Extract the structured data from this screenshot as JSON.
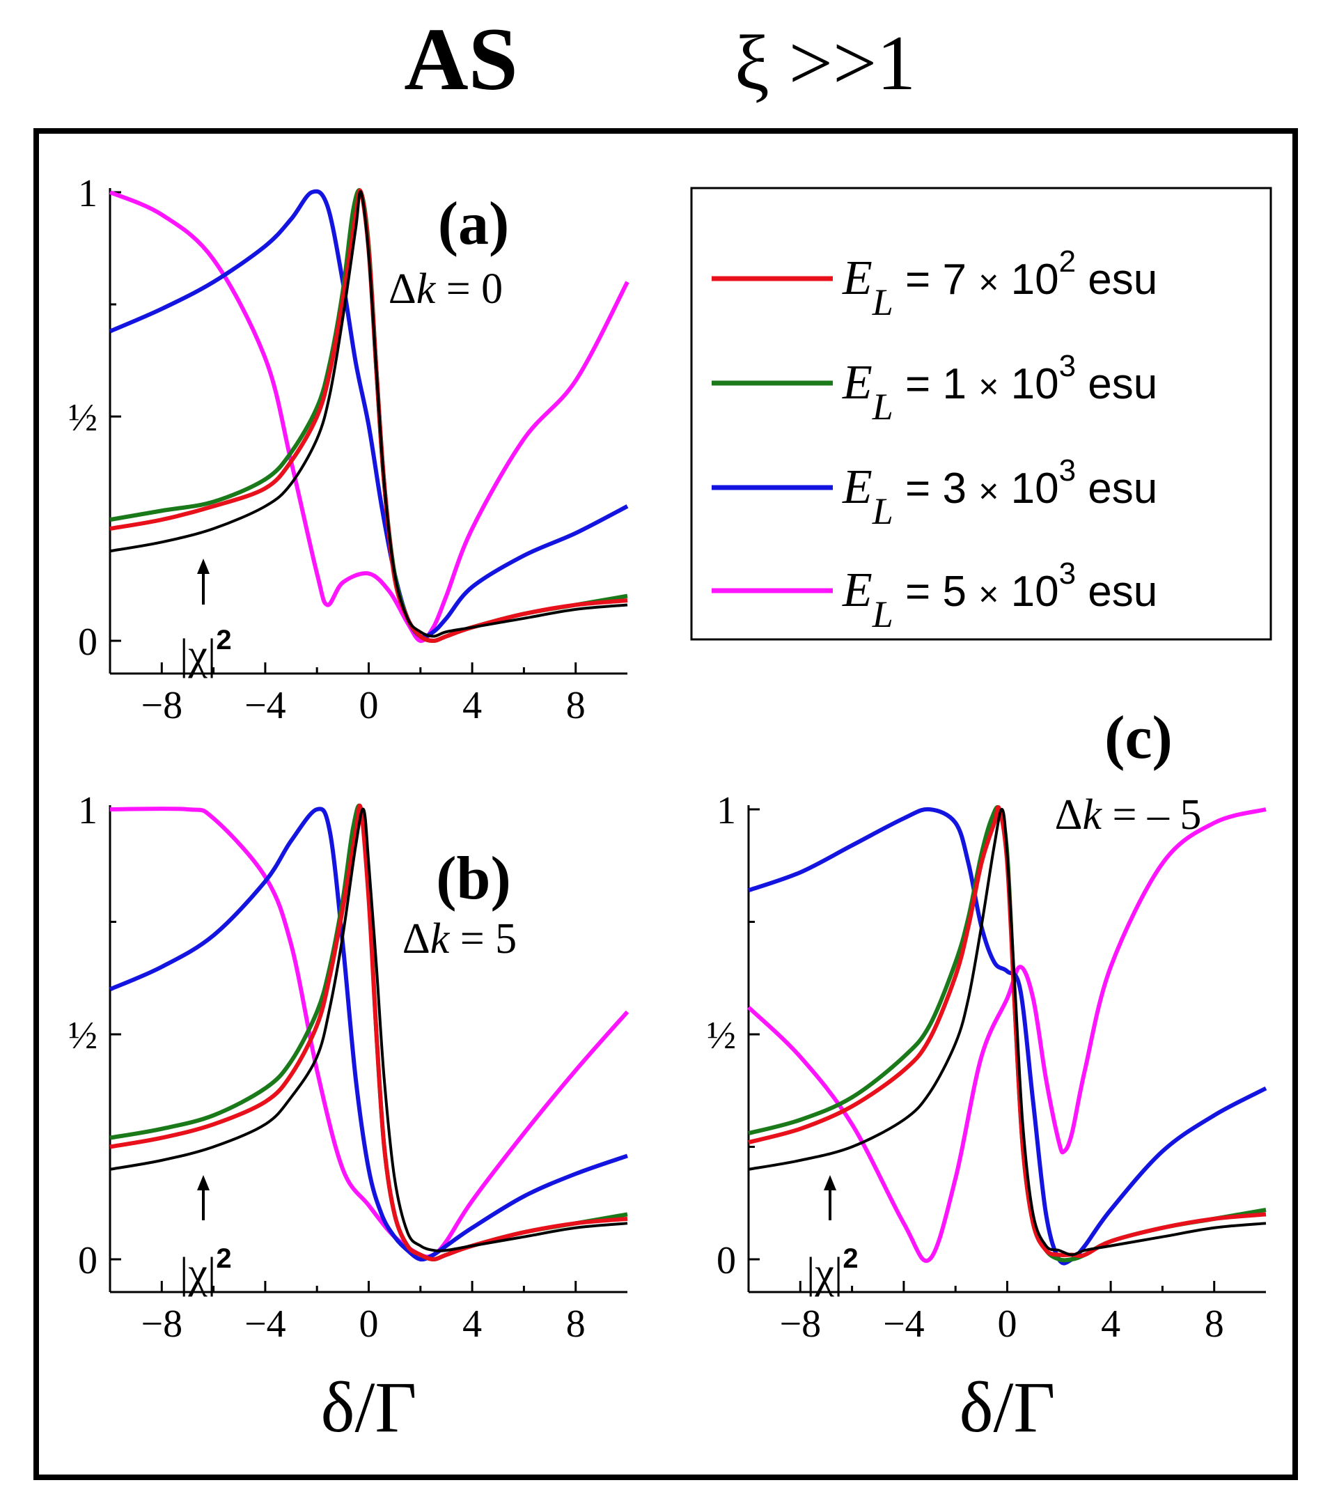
{
  "header": {
    "left": "AS",
    "right": "ξ >>1"
  },
  "legend": {
    "entries": [
      {
        "sym": "E",
        "sub": "L",
        "eq": " = 7 ",
        "times": "×",
        "base": " 10",
        "exp": "2",
        "unit": " esu",
        "color": "#e8101a"
      },
      {
        "sym": "E",
        "sub": "L",
        "eq": " = 1 ",
        "times": "×",
        "base": " 10",
        "exp": "3",
        "unit": " esu",
        "color": "#1a7a1a"
      },
      {
        "sym": "E",
        "sub": "L",
        "eq": " = 3 ",
        "times": "×",
        "base": " 10",
        "exp": "3",
        "unit": " esu",
        "color": "#1414e0"
      },
      {
        "sym": "E",
        "sub": "L",
        "eq": " = 5 ",
        "times": "×",
        "base": " 10",
        "exp": "3",
        "unit": " esu",
        "color": "#ff14ff"
      }
    ]
  },
  "chi_label": {
    "text": "|χ|",
    "exp": "2"
  },
  "chart_data": [
    {
      "type": "line",
      "panel_label": "(a)",
      "annotation": {
        "delta": "Δ",
        "k": "k",
        "rest": " = 0"
      },
      "xlim": [
        -10,
        10
      ],
      "ylim": [
        0,
        1
      ],
      "xticks": [
        -8,
        -4,
        0,
        4,
        8
      ],
      "xtick_labels": [
        "−8",
        "−4",
        "0",
        "4",
        "8"
      ],
      "yticks": [
        0,
        0.5,
        1
      ],
      "ytick_labels": [
        "0",
        "½",
        "1"
      ],
      "xlabel": "",
      "series": [
        {
          "color": "#ff14ff",
          "x": [
            -10,
            -8,
            -6,
            -4,
            -3,
            -2,
            -1.6,
            -1,
            0,
            0.8,
            1.5,
            2,
            2.5,
            3,
            4,
            6,
            8,
            10
          ],
          "y": [
            1.0,
            0.95,
            0.85,
            0.63,
            0.4,
            0.15,
            0.08,
            0.13,
            0.15,
            0.11,
            0.04,
            0.0,
            0.03,
            0.1,
            0.25,
            0.45,
            0.58,
            0.8
          ]
        },
        {
          "color": "#1414e0",
          "x": [
            -10,
            -8,
            -6,
            -4,
            -3,
            -2.2,
            -1.6,
            -1,
            -0.5,
            0,
            0.5,
            1,
            1.5,
            2,
            2.5,
            3,
            4,
            6,
            8,
            10
          ],
          "y": [
            0.69,
            0.74,
            0.8,
            0.88,
            0.94,
            1.0,
            0.97,
            0.8,
            0.62,
            0.48,
            0.3,
            0.15,
            0.05,
            0.01,
            0.02,
            0.05,
            0.12,
            0.19,
            0.24,
            0.3
          ]
        },
        {
          "color": "#1a7a1a",
          "x": [
            -10,
            -8,
            -6,
            -4,
            -3,
            -2,
            -1.5,
            -1,
            -0.6,
            -0.3,
            0,
            0.3,
            0.6,
            1,
            1.5,
            2,
            2.5,
            3,
            4,
            6,
            8,
            10
          ],
          "y": [
            0.27,
            0.29,
            0.31,
            0.36,
            0.42,
            0.52,
            0.62,
            0.78,
            0.96,
            1.0,
            0.88,
            0.6,
            0.35,
            0.15,
            0.05,
            0.01,
            0.0,
            0.01,
            0.03,
            0.06,
            0.08,
            0.1
          ]
        },
        {
          "color": "#e8101a",
          "x": [
            -10,
            -8,
            -6,
            -4,
            -3,
            -2,
            -1.5,
            -1,
            -0.5,
            -0.3,
            0,
            0.3,
            0.6,
            1,
            1.5,
            2,
            2.5,
            3,
            4,
            6,
            8,
            10
          ],
          "y": [
            0.25,
            0.27,
            0.3,
            0.34,
            0.4,
            0.5,
            0.6,
            0.76,
            0.95,
            1.0,
            0.87,
            0.6,
            0.35,
            0.14,
            0.05,
            0.01,
            0.0,
            0.01,
            0.03,
            0.06,
            0.08,
            0.09
          ]
        },
        {
          "color": "#000000",
          "x": [
            -10,
            -8,
            -6,
            -4,
            -3,
            -2,
            -1.5,
            -1,
            -0.5,
            -0.3,
            0,
            0.3,
            0.6,
            1,
            1.5,
            2,
            2.5,
            3,
            4,
            6,
            8,
            10
          ],
          "y": [
            0.2,
            0.22,
            0.25,
            0.3,
            0.35,
            0.45,
            0.55,
            0.72,
            0.92,
            1.0,
            0.86,
            0.6,
            0.35,
            0.15,
            0.05,
            0.02,
            0.01,
            0.02,
            0.03,
            0.05,
            0.07,
            0.08
          ]
        }
      ]
    },
    {
      "type": "line",
      "panel_label": "(b)",
      "annotation": {
        "delta": "Δ",
        "k": "k",
        "rest": " = 5"
      },
      "xlim": [
        -10,
        10
      ],
      "ylim": [
        0,
        1
      ],
      "xticks": [
        -8,
        -4,
        0,
        4,
        8
      ],
      "xtick_labels": [
        "−8",
        "−4",
        "0",
        "4",
        "8"
      ],
      "yticks": [
        0,
        0.5,
        1
      ],
      "ytick_labels": [
        "0",
        "½",
        "1"
      ],
      "xlabel": "δ/Γ",
      "series": [
        {
          "color": "#ff14ff",
          "x": [
            -10,
            -7,
            -6,
            -4,
            -3,
            -2,
            -1,
            0,
            1,
            2,
            2.5,
            3,
            4,
            6,
            8,
            10
          ],
          "y": [
            1.0,
            1.0,
            0.98,
            0.85,
            0.7,
            0.42,
            0.2,
            0.12,
            0.05,
            0.01,
            0.01,
            0.04,
            0.13,
            0.28,
            0.42,
            0.55
          ]
        },
        {
          "color": "#1414e0",
          "x": [
            -10,
            -8,
            -6,
            -4,
            -3,
            -2,
            -1.5,
            -1,
            -0.5,
            0,
            0.5,
            1,
            1.5,
            2,
            2.5,
            3,
            4,
            6,
            8,
            10
          ],
          "y": [
            0.6,
            0.65,
            0.72,
            0.84,
            0.93,
            1.0,
            0.95,
            0.7,
            0.4,
            0.2,
            0.1,
            0.05,
            0.02,
            0.0,
            0.01,
            0.03,
            0.07,
            0.14,
            0.19,
            0.23
          ]
        },
        {
          "color": "#1a7a1a",
          "x": [
            -10,
            -8,
            -6,
            -4,
            -3,
            -2,
            -1.5,
            -1,
            -0.6,
            -0.3,
            0,
            0.3,
            0.6,
            1,
            1.5,
            2,
            2.5,
            3,
            4,
            6,
            8,
            10
          ],
          "y": [
            0.27,
            0.29,
            0.32,
            0.38,
            0.44,
            0.55,
            0.65,
            0.8,
            0.96,
            1.0,
            0.82,
            0.5,
            0.25,
            0.1,
            0.03,
            0.01,
            0.0,
            0.01,
            0.03,
            0.06,
            0.08,
            0.1
          ]
        },
        {
          "color": "#e8101a",
          "x": [
            -10,
            -8,
            -6,
            -4,
            -3,
            -2,
            -1.5,
            -1,
            -0.5,
            -0.3,
            0,
            0.3,
            0.6,
            1,
            1.5,
            2,
            2.5,
            3,
            4,
            6,
            8,
            10
          ],
          "y": [
            0.25,
            0.27,
            0.3,
            0.35,
            0.41,
            0.52,
            0.63,
            0.78,
            0.95,
            1.0,
            0.8,
            0.5,
            0.25,
            0.1,
            0.03,
            0.01,
            0.0,
            0.01,
            0.03,
            0.06,
            0.08,
            0.09
          ]
        },
        {
          "color": "#000000",
          "x": [
            -10,
            -8,
            -6,
            -4,
            -3,
            -2,
            -1.5,
            -1,
            -0.5,
            -0.2,
            0,
            0.3,
            0.6,
            1,
            1.5,
            2,
            2.5,
            3,
            4,
            6,
            8,
            10
          ],
          "y": [
            0.2,
            0.22,
            0.25,
            0.3,
            0.36,
            0.45,
            0.56,
            0.72,
            0.92,
            1.0,
            0.88,
            0.65,
            0.4,
            0.18,
            0.06,
            0.03,
            0.02,
            0.02,
            0.03,
            0.05,
            0.07,
            0.08
          ]
        }
      ]
    },
    {
      "type": "line",
      "panel_label": "(c)",
      "annotation": {
        "delta": "Δ",
        "k": "k",
        "rest": " = – 5"
      },
      "xlim": [
        -10,
        10
      ],
      "ylim": [
        0,
        1
      ],
      "xticks": [
        -8,
        -4,
        0,
        4,
        8
      ],
      "xtick_labels": [
        "−8",
        "−4",
        "0",
        "4",
        "8"
      ],
      "yticks": [
        0,
        0.5,
        1
      ],
      "ytick_labels": [
        "0",
        "½",
        "1"
      ],
      "xlabel": "δ/Γ",
      "series": [
        {
          "color": "#ff14ff",
          "x": [
            -10,
            -8,
            -6,
            -4,
            -3,
            -2,
            -1,
            0,
            0.5,
            1,
            1.5,
            2,
            2.2,
            2.5,
            3,
            4,
            6,
            8,
            10
          ],
          "y": [
            0.56,
            0.45,
            0.3,
            0.08,
            0.0,
            0.18,
            0.45,
            0.58,
            0.65,
            0.58,
            0.4,
            0.26,
            0.24,
            0.28,
            0.42,
            0.65,
            0.88,
            0.97,
            1.0
          ]
        },
        {
          "color": "#1414e0",
          "x": [
            -10,
            -8,
            -6,
            -4,
            -3,
            -2,
            -1.5,
            -1,
            -0.5,
            0,
            0.5,
            1,
            1.5,
            2,
            2.5,
            3,
            4,
            6,
            8,
            10
          ],
          "y": [
            0.82,
            0.86,
            0.92,
            0.98,
            1.0,
            0.97,
            0.88,
            0.74,
            0.66,
            0.64,
            0.6,
            0.35,
            0.1,
            0.0,
            0.0,
            0.03,
            0.11,
            0.24,
            0.32,
            0.38
          ]
        },
        {
          "color": "#1a7a1a",
          "x": [
            -10,
            -8,
            -6,
            -4,
            -3,
            -2,
            -1.5,
            -1,
            -0.6,
            -0.3,
            0,
            0.3,
            0.6,
            1,
            1.5,
            2,
            2.5,
            3,
            4,
            6,
            8,
            10
          ],
          "y": [
            0.28,
            0.31,
            0.36,
            0.45,
            0.52,
            0.66,
            0.76,
            0.9,
            0.98,
            1.0,
            0.9,
            0.55,
            0.25,
            0.08,
            0.02,
            0.0,
            0.0,
            0.01,
            0.04,
            0.07,
            0.09,
            0.11
          ]
        },
        {
          "color": "#e8101a",
          "x": [
            -10,
            -8,
            -6,
            -4,
            -3,
            -2,
            -1.5,
            -1,
            -0.5,
            -0.3,
            0,
            0.3,
            0.6,
            1,
            1.5,
            2,
            2.5,
            3,
            4,
            6,
            8,
            10
          ],
          "y": [
            0.26,
            0.29,
            0.34,
            0.42,
            0.49,
            0.63,
            0.74,
            0.88,
            0.97,
            1.0,
            0.88,
            0.55,
            0.25,
            0.08,
            0.02,
            0.01,
            0.01,
            0.01,
            0.04,
            0.07,
            0.09,
            0.1
          ]
        },
        {
          "color": "#000000",
          "x": [
            -10,
            -8,
            -6,
            -4,
            -3,
            -2,
            -1.5,
            -1,
            -0.5,
            -0.2,
            0,
            0.3,
            0.6,
            1,
            1.5,
            2,
            2.5,
            3,
            4,
            6,
            8,
            10
          ],
          "y": [
            0.2,
            0.22,
            0.25,
            0.31,
            0.37,
            0.48,
            0.58,
            0.74,
            0.92,
            1.0,
            0.9,
            0.6,
            0.3,
            0.1,
            0.03,
            0.02,
            0.01,
            0.02,
            0.03,
            0.05,
            0.07,
            0.08
          ]
        }
      ]
    }
  ]
}
